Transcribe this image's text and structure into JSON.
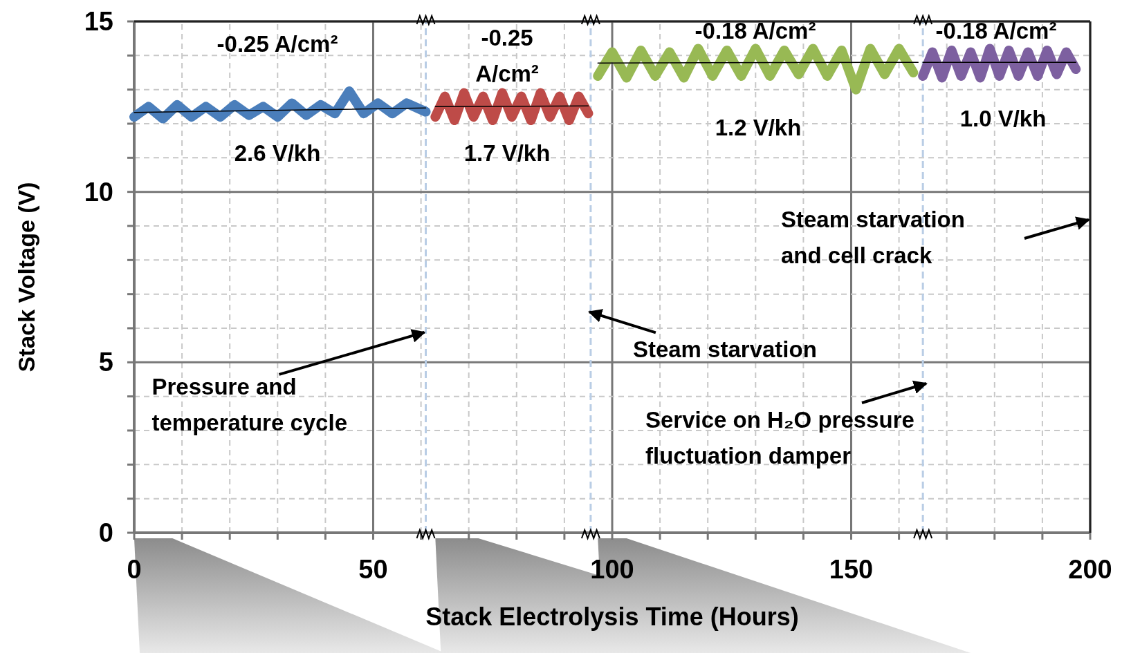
{
  "chart_data": {
    "type": "line",
    "xlabel": "Stack Electrolysis Time (Hours)",
    "ylabel": "Stack Voltage (V)",
    "xlim": [
      0,
      200
    ],
    "ylim": [
      0,
      15
    ],
    "xticks": [
      0,
      {
        "value": 10,
        "label": null
      },
      {
        "value": 20,
        "label": null
      },
      {
        "value": 30,
        "label": null
      },
      {
        "value": 40,
        "label": null
      },
      50,
      {
        "value": 60,
        "label": null
      },
      {
        "value": 70,
        "label": null
      },
      {
        "value": 80,
        "label": null
      },
      {
        "value": 90,
        "label": null
      },
      100,
      {
        "value": 110,
        "label": null
      },
      {
        "value": 120,
        "label": null
      },
      {
        "value": 130,
        "label": null
      },
      {
        "value": 140,
        "label": null
      },
      150,
      {
        "value": 160,
        "label": null
      },
      {
        "value": 170,
        "label": null
      },
      {
        "value": 180,
        "label": null
      },
      {
        "value": 190,
        "label": null
      },
      200
    ],
    "yticks": [
      0,
      {
        "value": 1,
        "label": null
      },
      {
        "value": 2,
        "label": null
      },
      {
        "value": 3,
        "label": null
      },
      {
        "value": 4,
        "label": null
      },
      5,
      {
        "value": 6,
        "label": null
      },
      {
        "value": 7,
        "label": null
      },
      {
        "value": 8,
        "label": null
      },
      {
        "value": 9,
        "label": null
      },
      10,
      {
        "value": 11,
        "label": null
      },
      {
        "value": 12,
        "label": null
      },
      {
        "value": 13,
        "label": null
      },
      {
        "value": 14,
        "label": null
      },
      15
    ],
    "grid": true,
    "marker": "none",
    "line_style": "solid",
    "series": [
      {
        "color": "#4a7ebb",
        "x": [
          0,
          3,
          6,
          9,
          12,
          15,
          18,
          21,
          24,
          27,
          30,
          33,
          36,
          39,
          42,
          45,
          48,
          51,
          54,
          57,
          61
        ],
        "values": [
          12.2,
          12.5,
          12.15,
          12.55,
          12.2,
          12.5,
          12.2,
          12.55,
          12.25,
          12.5,
          12.2,
          12.6,
          12.25,
          12.55,
          12.3,
          12.95,
          12.3,
          12.6,
          12.3,
          12.6,
          12.35
        ]
      },
      {
        "color": "#be4b48",
        "x": [
          63,
          65,
          67,
          69,
          71,
          73,
          75,
          77,
          79,
          81,
          83,
          85,
          87,
          89,
          91,
          93,
          95
        ],
        "values": [
          12.2,
          12.8,
          12.1,
          12.9,
          12.2,
          12.8,
          12.1,
          12.9,
          12.2,
          12.8,
          12.1,
          12.9,
          12.2,
          12.8,
          12.1,
          12.8,
          12.3
        ]
      },
      {
        "color": "#98b954",
        "x": [
          97,
          100,
          103,
          106,
          109,
          112,
          115,
          118,
          121,
          124,
          127,
          130,
          133,
          136,
          139,
          142,
          145,
          148,
          151,
          154,
          157,
          160,
          163
        ],
        "values": [
          13.4,
          14.1,
          13.35,
          14.15,
          13.4,
          14.1,
          13.35,
          14.2,
          13.4,
          14.15,
          13.4,
          14.2,
          13.4,
          14.15,
          13.45,
          14.2,
          13.4,
          14.15,
          13.0,
          14.2,
          13.45,
          14.2,
          13.5
        ]
      },
      {
        "color": "#7d60a0",
        "x": [
          165,
          167,
          169,
          171,
          173,
          175,
          177,
          179,
          181,
          183,
          185,
          187,
          189,
          191,
          193,
          195,
          197
        ],
        "values": [
          13.4,
          14.1,
          13.35,
          14.15,
          13.4,
          14.1,
          13.35,
          14.2,
          13.4,
          14.15,
          13.4,
          14.1,
          13.4,
          14.15,
          13.45,
          14.1,
          13.6
        ]
      },
      {
        "type": "line",
        "color": "#000000",
        "x": [
          0,
          61
        ],
        "values": [
          12.33,
          12.46
        ]
      },
      {
        "type": "line",
        "color": "#000000",
        "x": [
          63,
          95
        ],
        "values": [
          12.5,
          12.52
        ]
      },
      {
        "type": "line",
        "color": "#000000",
        "x": [
          97,
          164
        ],
        "values": [
          13.78,
          13.8
        ]
      },
      {
        "type": "line",
        "color": "#000000",
        "x": [
          165,
          197
        ],
        "values": [
          13.8,
          13.8
        ]
      }
    ],
    "ref_lines": [
      {
        "axis": "x",
        "value": 61,
        "color": "#b9cde5",
        "line_style": "dashed"
      },
      {
        "axis": "x",
        "value": 95.5,
        "color": "#b9cde5",
        "line_style": "dashed"
      },
      {
        "axis": "x",
        "value": 165,
        "color": "#b9cde5",
        "line_style": "dashed"
      }
    ],
    "annotations": [
      "-0.25 A/cm²",
      "2.6 V/kh",
      "-0.25\nA/cm²",
      "1.7 V/kh",
      "-0.18 A/cm²",
      "1.2 V/kh",
      "-0.18 A/cm²",
      "1.0 V/kh",
      {
        "text": "Pressure and\ntemperature cycle",
        "x": 61,
        "y": 5.9
      },
      {
        "text": "Steam starvation",
        "x": 95.5,
        "y": 6.5
      },
      "Service on H₂O pressure\nfluctuation damper",
      "Steam starvation\nand cell crack"
    ]
  }
}
